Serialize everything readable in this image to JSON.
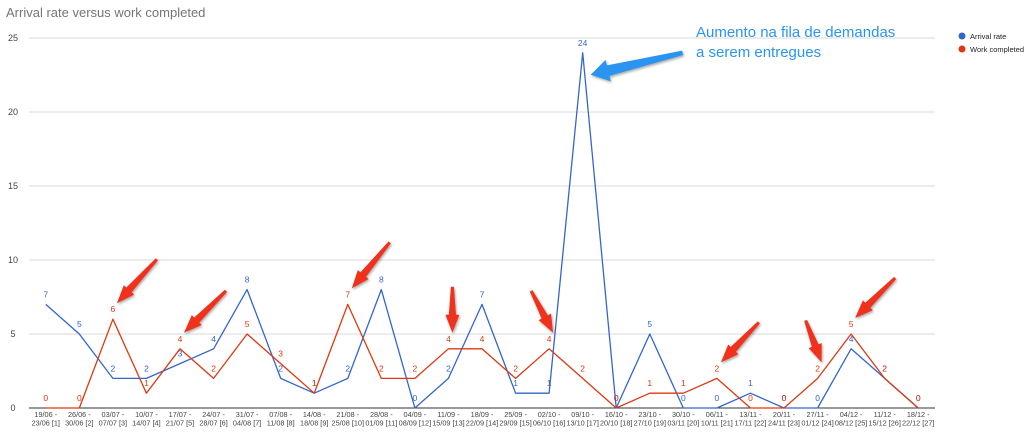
{
  "chart_data": {
    "type": "line",
    "title": "Arrival rate versus work completed",
    "xlabel": "",
    "ylabel": "",
    "ylim": [
      0,
      25
    ],
    "yticks": [
      0,
      5,
      10,
      15,
      20,
      25
    ],
    "grid": true,
    "legend_position": "top-right",
    "categories": [
      [
        "19/06 -",
        "23/06 [1]"
      ],
      [
        "26/06 -",
        "30/06 [2]"
      ],
      [
        "03/07 -",
        "07/07 [3]"
      ],
      [
        "10/07 -",
        "14/07 [4]"
      ],
      [
        "17/07 -",
        "21/07 [5]"
      ],
      [
        "24/07 -",
        "28/07 [6]"
      ],
      [
        "31/07 -",
        "04/08 [7]"
      ],
      [
        "07/08 -",
        "11/08 [8]"
      ],
      [
        "14/08 -",
        "18/08 [9]"
      ],
      [
        "21/08 -",
        "25/08 [10]"
      ],
      [
        "28/08 -",
        "01/09 [11]"
      ],
      [
        "04/09 -",
        "08/09 [12]"
      ],
      [
        "11/09 -",
        "15/09 [13]"
      ],
      [
        "18/09 -",
        "22/09 [14]"
      ],
      [
        "25/09 -",
        "29/09 [15]"
      ],
      [
        "02/10 -",
        "06/10 [16]"
      ],
      [
        "09/10 -",
        "13/10 [17]"
      ],
      [
        "16/10 -",
        "20/10 [18]"
      ],
      [
        "23/10 -",
        "27/10 [19]"
      ],
      [
        "30/10 -",
        "03/11 [20]"
      ],
      [
        "06/11 -",
        "10/11 [21]"
      ],
      [
        "13/11 -",
        "17/11 [22]"
      ],
      [
        "20/11 -",
        "24/11 [23]"
      ],
      [
        "27/11 -",
        "01/12 [24]"
      ],
      [
        "04/12 -",
        "08/12 [25]"
      ],
      [
        "11/12 -",
        "15/12 [26]"
      ],
      [
        "18/12 -",
        "22/12 [27]"
      ]
    ],
    "series": [
      {
        "name": "Arrival rate",
        "color": "#3366cc",
        "values": [
          7,
          5,
          2,
          2,
          3,
          4,
          8,
          2,
          1,
          2,
          8,
          0,
          2,
          7,
          1,
          1,
          24,
          0,
          5,
          0,
          0,
          1,
          0,
          0,
          4,
          2,
          0
        ]
      },
      {
        "name": "Work completed",
        "color": "#dc3912",
        "values": [
          0,
          0,
          6,
          1,
          4,
          2,
          5,
          3,
          1,
          7,
          2,
          2,
          4,
          4,
          2,
          4,
          2,
          0,
          1,
          1,
          2,
          0,
          0,
          2,
          5,
          2,
          0
        ]
      }
    ],
    "annotation": {
      "text_lines": [
        "Aumento na fila de demandas",
        "a serem entregues"
      ],
      "color": "#2b94f0",
      "points_to_index": 16
    },
    "red_arrow_targets": [
      2,
      4,
      9,
      12,
      15,
      20,
      23,
      24
    ],
    "arrow_color": "#f0321e"
  }
}
